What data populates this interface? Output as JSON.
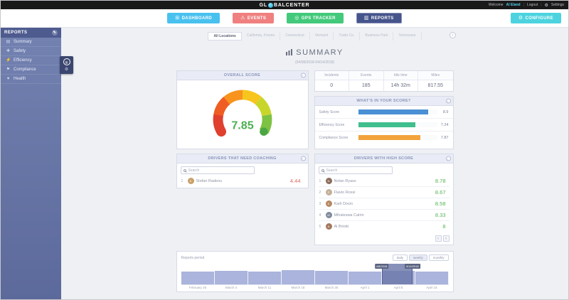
{
  "icons": {
    "dashboard": "⊞",
    "warning": "⚠",
    "gps-target": "◎",
    "report-chart": "▥",
    "gear": "⚙",
    "bar-chart": "▤",
    "cross": "✚",
    "bolt": "⚡",
    "flag": "⚑",
    "heart": "♥",
    "pencil": "✎",
    "info": "i",
    "prev": "‹",
    "next": "›"
  },
  "topbar": {
    "logo_left": "GL",
    "logo_right": "BALCENTER",
    "welcome_prefix": "Welcome",
    "user": "Al Eland",
    "logout": "Logout",
    "settings": "Settings"
  },
  "nav": {
    "items": [
      {
        "label": "DASHBOARD",
        "color": "#49c1ef"
      },
      {
        "label": "EVENTS",
        "color": "#f08080"
      },
      {
        "label": "GPS TRACKER",
        "color": "#43c97b"
      },
      {
        "label": "REPORTS",
        "color": "#46548c",
        "active": true
      },
      {
        "label": "CONFIGURE",
        "color": "#4cd3df"
      }
    ]
  },
  "sidebar": {
    "title": "REPORTS",
    "items": [
      {
        "label": "Summary"
      },
      {
        "label": "Safety"
      },
      {
        "label": "Efficiency"
      },
      {
        "label": "Compliance"
      },
      {
        "label": "Health"
      }
    ]
  },
  "tabs": [
    {
      "label": "All Locations",
      "active": true
    },
    {
      "label": "California, Fresno"
    },
    {
      "label": "Connecticut"
    },
    {
      "label": "Vermont"
    },
    {
      "label": "Trade Co."
    },
    {
      "label": "Business Park"
    },
    {
      "label": "Tennessee"
    }
  ],
  "summary": {
    "title": "SUMMARY",
    "date_range": "(04/08/2018-04/14/2018)"
  },
  "overall_score": {
    "title": "OVERALL SCORE",
    "value": "7.85",
    "value_color": "#4caf50"
  },
  "stats": [
    {
      "label": "Incidents",
      "value": "0"
    },
    {
      "label": "Events",
      "value": "185"
    },
    {
      "label": "Idle time",
      "value": "14h 32m"
    },
    {
      "label": "Miles",
      "value": "817.55"
    }
  ],
  "score_breakdown": {
    "title": "WHAT'S IN YOUR SCORE?",
    "bars": [
      {
        "label": "Safety Score",
        "value": "8.9",
        "color": "#4a90d5"
      },
      {
        "label": "Efficiency Score",
        "value": "7.24",
        "color": "#3fbe8e"
      },
      {
        "label": "Compliance Score",
        "value": "7.87",
        "color": "#f2a33c"
      }
    ]
  },
  "coaching": {
    "title": "DRIVERS THAT NEED COACHING",
    "search_placeholder": "Search",
    "drivers": [
      {
        "rank": "1",
        "name": "Stefan Radeou",
        "score": "4.44",
        "avatar_color": "#c8a06a",
        "initial": "S"
      }
    ]
  },
  "high_score": {
    "title": "DRIVERS WITH HIGH SCORE",
    "search_placeholder": "Search",
    "drivers": [
      {
        "rank": "1",
        "name": "Nolan Ryass",
        "score": "8.78",
        "avatar_color": "#8a6d5c",
        "initial": "N"
      },
      {
        "rank": "2",
        "name": "Flavio Rossi",
        "score": "8.67",
        "avatar_color": "#c2b09a",
        "initial": "F"
      },
      {
        "rank": "3",
        "name": "Karli Dixon",
        "score": "8.58",
        "avatar_color": "#b58863",
        "initial": "K"
      },
      {
        "rank": "4",
        "name": "Mihaleswa Catrin",
        "score": "8.33",
        "avatar_color": "#7f8a9a",
        "initial": "M"
      },
      {
        "rank": "5",
        "name": "Al Briotti",
        "score": "8",
        "avatar_color": "#a3795f",
        "initial": "A"
      }
    ]
  },
  "reports_period": {
    "label": "Reports period",
    "range_buttons": [
      "daily",
      "weekly",
      "monthly"
    ],
    "active_range": "weekly",
    "axis_labels": [
      "February 25",
      "March 4",
      "March 11",
      "March 18",
      "March 25",
      "April 1",
      "April 8",
      "April 15"
    ],
    "activity_pct": [
      63,
      66,
      62,
      68,
      64,
      61,
      66,
      63
    ],
    "selection": {
      "left_pct": 75,
      "width_pct": 11.5
    },
    "selection_start_label": "4/8/2018",
    "selection_end_label": "4/14/2018"
  }
}
